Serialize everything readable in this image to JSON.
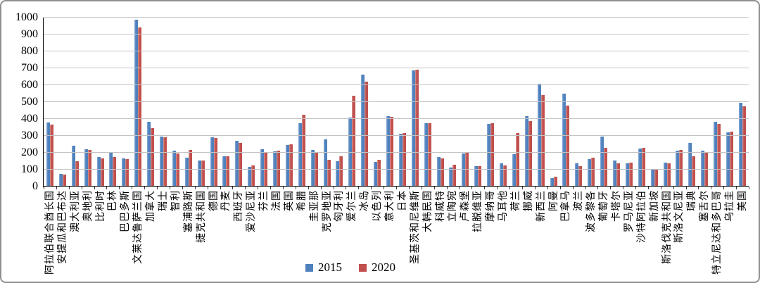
{
  "chart_data": {
    "type": "bar",
    "title": "",
    "xlabel": "",
    "ylabel": "",
    "ylim": [
      0,
      1000
    ],
    "ytick_step": 100,
    "grid": true,
    "legend_position": "bottom-center",
    "categories": [
      "阿拉伯联合酋长国",
      "安提瓜和巴布达",
      "澳大利亚",
      "奥地利",
      "比利时",
      "巴林",
      "巴巴多斯",
      "文莱达鲁萨兰国",
      "加拿大",
      "瑞士",
      "智利",
      "塞浦路斯",
      "捷克共和国",
      "德国",
      "丹麦",
      "西班牙",
      "爱沙尼亚",
      "芬兰",
      "法国",
      "英国",
      "希腊",
      "圭亚那",
      "克罗地亚",
      "匈牙利",
      "爱尔兰",
      "冰岛",
      "以色列",
      "意大利",
      "日本",
      "圣基茨和尼维斯",
      "大韩民国",
      "科威特",
      "立陶宛",
      "卢森堡",
      "拉脱维亚",
      "摩纳哥",
      "马耳他",
      "荷兰",
      "挪威",
      "新西兰",
      "阿曼",
      "巴拿马",
      "波兰",
      "波多黎各",
      "葡萄牙",
      "卡塔尔",
      "罗马尼亚",
      "沙特阿拉伯",
      "新加坡",
      "斯洛伐克共和国",
      "斯洛文尼亚",
      "瑞典",
      "塞舌尔",
      "特立尼达和多巴哥",
      "乌拉圭",
      "美国"
    ],
    "series": [
      {
        "name": "2015",
        "color": "#4f81bd",
        "values": [
          378,
          75,
          240,
          220,
          174,
          204,
          166,
          988,
          385,
          297,
          211,
          172,
          153,
          293,
          178,
          270,
          116,
          222,
          210,
          247,
          375,
          216,
          280,
          150,
          409,
          664,
          147,
          418,
          311,
          689,
          373,
          175,
          112,
          195,
          119,
          370,
          137,
          192,
          416,
          607,
          51,
          548,
          139,
          161,
          295,
          155,
          136,
          226,
          105,
          142,
          212,
          260,
          214,
          385,
          320,
          497
        ]
      },
      {
        "name": "2020",
        "color": "#c0504d",
        "values": [
          365,
          70,
          148,
          215,
          166,
          176,
          161,
          940,
          345,
          290,
          194,
          218,
          153,
          289,
          180,
          257,
          126,
          205,
          211,
          251,
          427,
          205,
          160,
          179,
          537,
          621,
          158,
          411,
          316,
          693,
          373,
          167,
          129,
          199,
          119,
          373,
          124,
          315,
          388,
          541,
          58,
          480,
          122,
          172,
          228,
          137,
          142,
          228,
          101,
          139,
          216,
          179,
          203,
          372,
          323,
          476
        ]
      }
    ],
    "ytick_labels": [
      "0",
      "100",
      "200",
      "300",
      "400",
      "500",
      "600",
      "700",
      "800",
      "900",
      "1000"
    ]
  }
}
